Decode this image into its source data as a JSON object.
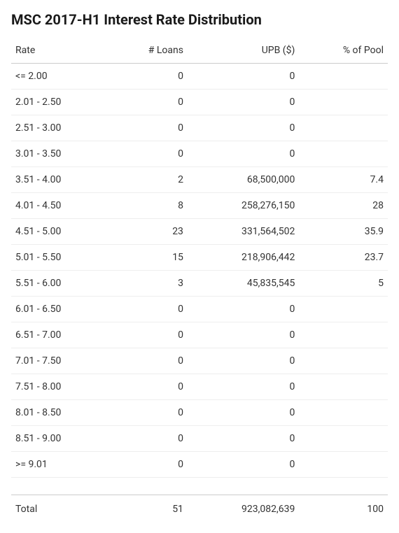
{
  "title": "MSC 2017-H1 Interest Rate Distribution",
  "table": {
    "type": "table",
    "columns": [
      "Rate",
      "# Loans",
      "UPB ($)",
      "% of Pool"
    ],
    "rows": [
      {
        "rate": "<= 2.00",
        "loans": "0",
        "upb": "0",
        "pct": ""
      },
      {
        "rate": "2.01 - 2.50",
        "loans": "0",
        "upb": "0",
        "pct": ""
      },
      {
        "rate": "2.51 - 3.00",
        "loans": "0",
        "upb": "0",
        "pct": ""
      },
      {
        "rate": "3.01 - 3.50",
        "loans": "0",
        "upb": "0",
        "pct": ""
      },
      {
        "rate": "3.51 - 4.00",
        "loans": "2",
        "upb": "68,500,000",
        "pct": "7.4"
      },
      {
        "rate": "4.01 - 4.50",
        "loans": "8",
        "upb": "258,276,150",
        "pct": "28"
      },
      {
        "rate": "4.51 - 5.00",
        "loans": "23",
        "upb": "331,564,502",
        "pct": "35.9"
      },
      {
        "rate": "5.01 - 5.50",
        "loans": "15",
        "upb": "218,906,442",
        "pct": "23.7"
      },
      {
        "rate": "5.51 - 6.00",
        "loans": "3",
        "upb": "45,835,545",
        "pct": "5"
      },
      {
        "rate": "6.01 - 6.50",
        "loans": "0",
        "upb": "0",
        "pct": ""
      },
      {
        "rate": "6.51 - 7.00",
        "loans": "0",
        "upb": "0",
        "pct": ""
      },
      {
        "rate": "7.01 - 7.50",
        "loans": "0",
        "upb": "0",
        "pct": ""
      },
      {
        "rate": "7.51 - 8.00",
        "loans": "0",
        "upb": "0",
        "pct": ""
      },
      {
        "rate": "8.01 - 8.50",
        "loans": "0",
        "upb": "0",
        "pct": ""
      },
      {
        "rate": "8.51 - 9.00",
        "loans": "0",
        "upb": "0",
        "pct": ""
      },
      {
        "rate": ">= 9.01",
        "loans": "0",
        "upb": "0",
        "pct": ""
      }
    ],
    "total": {
      "label": "Total",
      "loans": "51",
      "upb": "923,082,639",
      "pct": "100"
    },
    "column_align": [
      "left",
      "right",
      "right",
      "right"
    ],
    "header_border_color": "#cccccc",
    "row_border_color": "#eeeeee",
    "text_color": "#333333",
    "background_color": "#ffffff",
    "title_fontsize": 20,
    "body_fontsize": 14
  }
}
